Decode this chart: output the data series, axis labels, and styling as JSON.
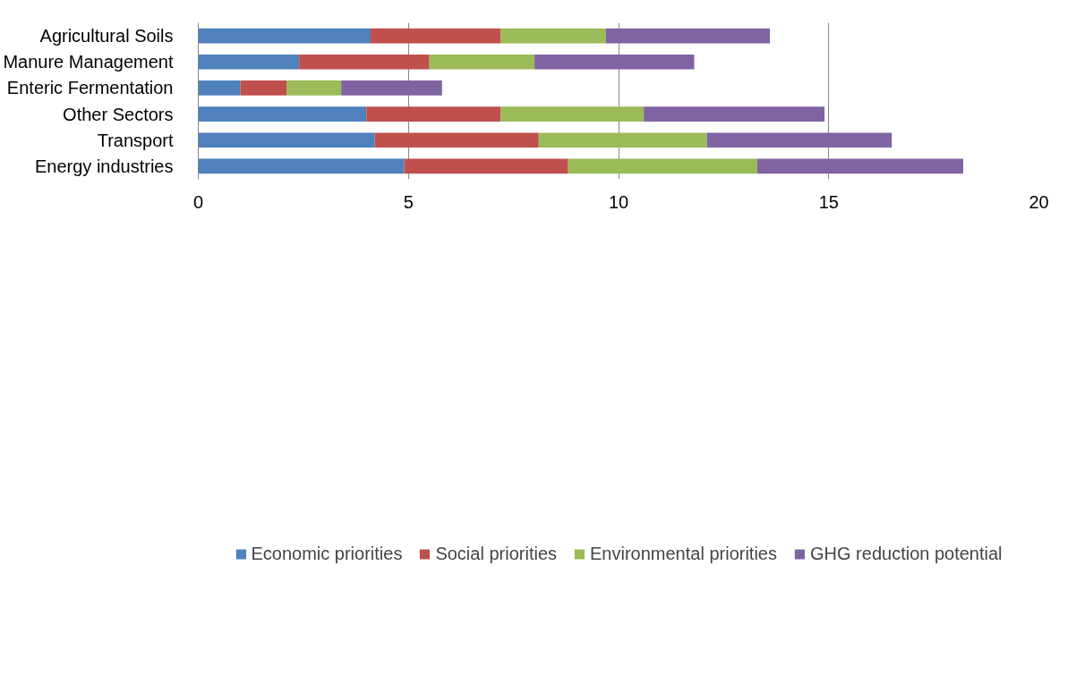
{
  "chart_data": {
    "type": "bar",
    "orientation": "horizontal",
    "stacked": true,
    "categories": [
      "Agricultural Soils",
      "Manure Management",
      "Enteric Fermentation",
      "Other Sectors",
      "Transport",
      "Energy industries"
    ],
    "series": [
      {
        "name": "Economic priorities",
        "color": "#4f81bd",
        "values": [
          4.1,
          2.4,
          1.0,
          4.0,
          4.2,
          4.9
        ]
      },
      {
        "name": "Social priorities",
        "color": "#c0504d",
        "values": [
          3.1,
          3.1,
          1.1,
          3.2,
          3.9,
          3.9
        ]
      },
      {
        "name": "Environmental priorities",
        "color": "#9bbb59",
        "values": [
          2.5,
          2.5,
          1.3,
          3.4,
          4.0,
          4.5
        ]
      },
      {
        "name": "GHG reduction potential",
        "color": "#8064a2",
        "values": [
          3.9,
          3.8,
          2.4,
          4.3,
          4.4,
          4.9
        ]
      }
    ],
    "xlim": [
      0,
      20
    ],
    "xticks": [
      0,
      5,
      10,
      15,
      20
    ],
    "grid": "x",
    "legend": "bottom"
  }
}
